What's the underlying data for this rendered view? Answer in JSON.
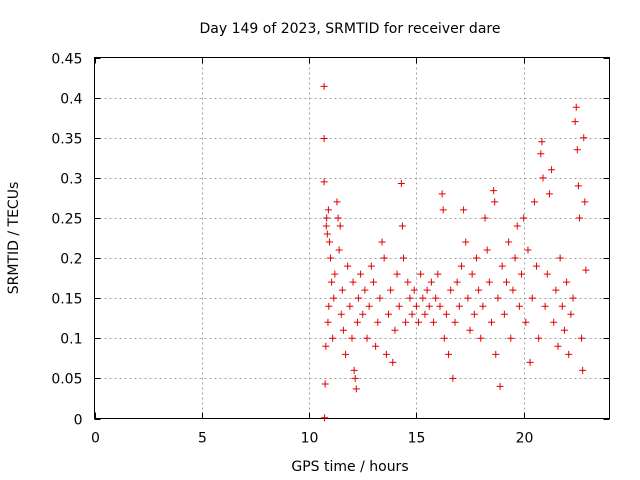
{
  "chart_data": {
    "type": "scatter",
    "title": "Day 149 of 2023, SRMTID for receiver dare",
    "xlabel": "GPS time / hours",
    "ylabel": "SRMTID / TECUs",
    "xlim": [
      0,
      24
    ],
    "ylim": [
      0,
      0.45
    ],
    "x_ticks": [
      0,
      5,
      10,
      15,
      20
    ],
    "x_tick_labels": [
      "0",
      "5",
      "10",
      "15",
      "20"
    ],
    "y_ticks": [
      0,
      0.05,
      0.1,
      0.15,
      0.2,
      0.25,
      0.3,
      0.35,
      0.4,
      0.45
    ],
    "y_tick_labels": [
      "0",
      "0.05",
      "0.1",
      "0.15",
      "0.2",
      "0.25",
      "0.3",
      "0.35",
      "0.4",
      "0.45"
    ],
    "grid": true,
    "marker": "+",
    "color": "#e00000",
    "series": [
      {
        "name": "SRMTID",
        "points": [
          [
            10.7,
            0.414
          ],
          [
            10.7,
            0.349
          ],
          [
            10.7,
            0.295
          ],
          [
            10.72,
            0.001
          ],
          [
            10.75,
            0.043
          ],
          [
            10.78,
            0.09
          ],
          [
            10.8,
            0.24
          ],
          [
            10.82,
            0.25
          ],
          [
            10.85,
            0.23
          ],
          [
            10.9,
            0.26
          ],
          [
            10.95,
            0.22
          ],
          [
            11.0,
            0.2
          ],
          [
            11.05,
            0.17
          ],
          [
            10.88,
            0.12
          ],
          [
            10.92,
            0.14
          ],
          [
            11.1,
            0.1
          ],
          [
            11.15,
            0.15
          ],
          [
            11.2,
            0.18
          ],
          [
            11.3,
            0.27
          ],
          [
            11.35,
            0.25
          ],
          [
            11.4,
            0.21
          ],
          [
            11.45,
            0.24
          ],
          [
            11.5,
            0.13
          ],
          [
            11.55,
            0.16
          ],
          [
            11.6,
            0.11
          ],
          [
            11.7,
            0.08
          ],
          [
            11.8,
            0.19
          ],
          [
            11.9,
            0.14
          ],
          [
            12.0,
            0.1
          ],
          [
            12.05,
            0.17
          ],
          [
            12.1,
            0.06
          ],
          [
            12.15,
            0.05
          ],
          [
            12.2,
            0.037
          ],
          [
            12.25,
            0.12
          ],
          [
            12.3,
            0.15
          ],
          [
            12.4,
            0.18
          ],
          [
            12.5,
            0.13
          ],
          [
            12.6,
            0.16
          ],
          [
            12.7,
            0.1
          ],
          [
            12.8,
            0.14
          ],
          [
            12.9,
            0.19
          ],
          [
            13.0,
            0.17
          ],
          [
            13.1,
            0.09
          ],
          [
            13.2,
            0.12
          ],
          [
            13.3,
            0.15
          ],
          [
            13.4,
            0.22
          ],
          [
            13.5,
            0.2
          ],
          [
            13.6,
            0.08
          ],
          [
            13.7,
            0.13
          ],
          [
            13.8,
            0.16
          ],
          [
            13.9,
            0.07
          ],
          [
            14.0,
            0.11
          ],
          [
            14.1,
            0.18
          ],
          [
            14.2,
            0.14
          ],
          [
            14.3,
            0.293
          ],
          [
            14.35,
            0.24
          ],
          [
            14.4,
            0.2
          ],
          [
            14.5,
            0.12
          ],
          [
            14.6,
            0.17
          ],
          [
            14.7,
            0.15
          ],
          [
            14.8,
            0.13
          ],
          [
            14.9,
            0.16
          ],
          [
            15.0,
            0.14
          ],
          [
            15.1,
            0.12
          ],
          [
            15.2,
            0.18
          ],
          [
            15.3,
            0.15
          ],
          [
            15.4,
            0.13
          ],
          [
            15.5,
            0.16
          ],
          [
            15.6,
            0.14
          ],
          [
            15.7,
            0.17
          ],
          [
            15.8,
            0.12
          ],
          [
            15.9,
            0.15
          ],
          [
            16.0,
            0.18
          ],
          [
            16.1,
            0.14
          ],
          [
            16.2,
            0.28
          ],
          [
            16.25,
            0.26
          ],
          [
            16.3,
            0.1
          ],
          [
            16.4,
            0.13
          ],
          [
            16.5,
            0.08
          ],
          [
            16.6,
            0.16
          ],
          [
            16.7,
            0.05
          ],
          [
            16.8,
            0.12
          ],
          [
            16.9,
            0.17
          ],
          [
            17.0,
            0.14
          ],
          [
            17.1,
            0.19
          ],
          [
            17.2,
            0.26
          ],
          [
            17.3,
            0.22
          ],
          [
            17.4,
            0.15
          ],
          [
            17.5,
            0.11
          ],
          [
            17.6,
            0.18
          ],
          [
            17.7,
            0.13
          ],
          [
            17.8,
            0.2
          ],
          [
            17.9,
            0.16
          ],
          [
            18.0,
            0.1
          ],
          [
            18.1,
            0.14
          ],
          [
            18.2,
            0.25
          ],
          [
            18.3,
            0.21
          ],
          [
            18.4,
            0.17
          ],
          [
            18.5,
            0.12
          ],
          [
            18.6,
            0.284
          ],
          [
            18.65,
            0.27
          ],
          [
            18.7,
            0.08
          ],
          [
            18.8,
            0.15
          ],
          [
            18.9,
            0.04
          ],
          [
            19.0,
            0.19
          ],
          [
            19.1,
            0.13
          ],
          [
            19.2,
            0.17
          ],
          [
            19.3,
            0.22
          ],
          [
            19.4,
            0.1
          ],
          [
            19.5,
            0.16
          ],
          [
            19.6,
            0.2
          ],
          [
            19.7,
            0.24
          ],
          [
            19.8,
            0.14
          ],
          [
            19.9,
            0.18
          ],
          [
            20.0,
            0.25
          ],
          [
            20.1,
            0.12
          ],
          [
            20.2,
            0.21
          ],
          [
            20.3,
            0.07
          ],
          [
            20.4,
            0.15
          ],
          [
            20.5,
            0.27
          ],
          [
            20.6,
            0.19
          ],
          [
            20.7,
            0.1
          ],
          [
            20.8,
            0.33
          ],
          [
            20.85,
            0.345
          ],
          [
            20.9,
            0.3
          ],
          [
            21.0,
            0.14
          ],
          [
            21.1,
            0.18
          ],
          [
            21.2,
            0.28
          ],
          [
            21.3,
            0.31
          ],
          [
            21.4,
            0.12
          ],
          [
            21.5,
            0.16
          ],
          [
            21.6,
            0.09
          ],
          [
            21.7,
            0.2
          ],
          [
            21.8,
            0.14
          ],
          [
            21.9,
            0.11
          ],
          [
            22.0,
            0.17
          ],
          [
            22.1,
            0.08
          ],
          [
            22.2,
            0.13
          ],
          [
            22.3,
            0.15
          ],
          [
            22.4,
            0.37
          ],
          [
            22.45,
            0.388
          ],
          [
            22.5,
            0.335
          ],
          [
            22.55,
            0.29
          ],
          [
            22.6,
            0.25
          ],
          [
            22.7,
            0.1
          ],
          [
            22.75,
            0.06
          ],
          [
            22.8,
            0.35
          ],
          [
            22.85,
            0.27
          ],
          [
            22.9,
            0.185
          ]
        ]
      }
    ]
  }
}
